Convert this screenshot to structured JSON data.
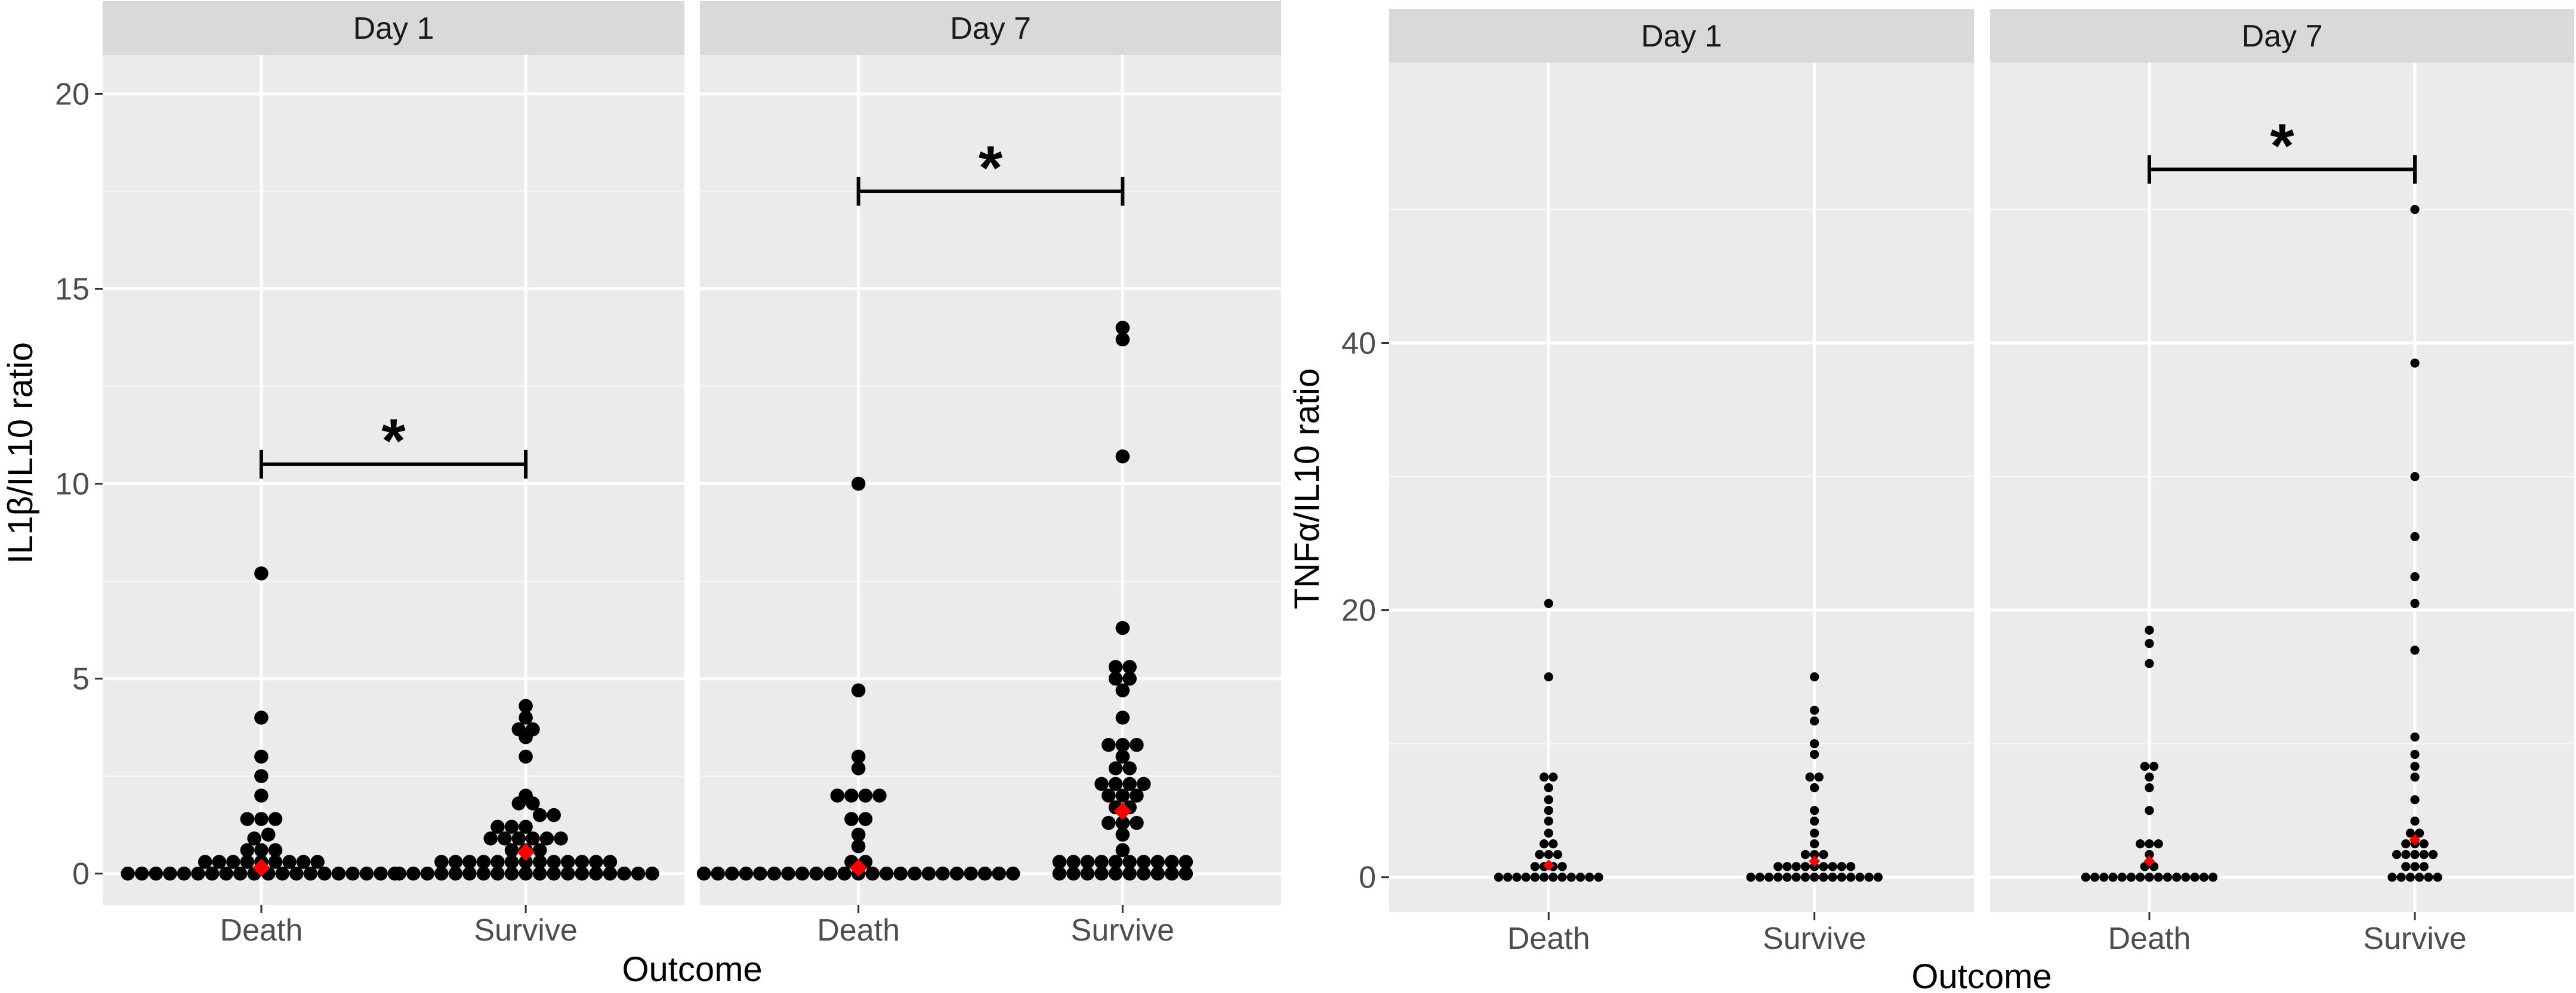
{
  "chart_data": [
    {
      "type": "scatter",
      "style": "dotplot",
      "ylabel": "IL1β/IL10 ratio",
      "xlabel": "Outcome",
      "ylim": [
        -0.8,
        21
      ],
      "yticks": [
        0,
        5,
        10,
        15,
        20
      ],
      "ytick_labels": [
        "0",
        "5",
        "10",
        "15",
        "20"
      ],
      "categories": [
        "Death",
        "Survive"
      ],
      "bin": 0.34,
      "dot_radius": 0.18,
      "panels": [
        {
          "facet": "Day 1",
          "groups": [
            {
              "category": "Death",
              "mean": 0.15,
              "values": [
                0,
                0,
                0,
                0,
                0,
                0,
                0,
                0,
                0,
                0,
                0,
                0,
                0,
                0,
                0,
                0,
                0,
                0,
                0,
                0,
                0.3,
                0.3,
                0.3,
                0.3,
                0.3,
                0.3,
                0.3,
                0.3,
                0.3,
                0.6,
                0.6,
                0.6,
                0.9,
                1.0,
                1.4,
                1.4,
                1.4,
                2.0,
                2.5,
                3.0,
                4.0,
                7.7
              ]
            },
            {
              "category": "Survive",
              "mean": 0.55,
              "values": [
                0,
                0,
                0,
                0,
                0,
                0,
                0,
                0,
                0,
                0,
                0,
                0,
                0,
                0,
                0,
                0,
                0,
                0,
                0,
                0.3,
                0.3,
                0.3,
                0.3,
                0.3,
                0.3,
                0.3,
                0.3,
                0.3,
                0.3,
                0.3,
                0.3,
                0.3,
                0.6,
                0.6,
                0.6,
                0.9,
                0.9,
                0.9,
                0.9,
                0.9,
                0.9,
                1.2,
                1.2,
                1.2,
                1.5,
                1.5,
                1.8,
                1.8,
                2.0,
                3.0,
                3.5,
                3.7,
                3.7,
                4.0,
                4.3
              ]
            }
          ],
          "significance": {
            "from": "Death",
            "to": "Survive",
            "y": 10.5,
            "label": "*"
          }
        },
        {
          "facet": "Day 7",
          "groups": [
            {
              "category": "Death",
              "mean": 0.15,
              "values": [
                0,
                0,
                0,
                0,
                0,
                0,
                0,
                0,
                0,
                0,
                0,
                0,
                0,
                0,
                0,
                0,
                0,
                0,
                0,
                0,
                0,
                0,
                0,
                0.3,
                0.3,
                0.7,
                1.0,
                1.4,
                1.4,
                2.0,
                2.0,
                2.0,
                2.0,
                2.7,
                3.0,
                4.7,
                10.0
              ]
            },
            {
              "category": "Survive",
              "mean": 1.6,
              "values": [
                0,
                0,
                0,
                0,
                0,
                0,
                0,
                0,
                0,
                0,
                0.3,
                0.3,
                0.3,
                0.3,
                0.3,
                0.3,
                0.3,
                0.3,
                0.3,
                0.3,
                0.6,
                1.0,
                1.3,
                1.3,
                1.3,
                1.7,
                1.7,
                2.0,
                2.0,
                2.0,
                2.3,
                2.3,
                2.3,
                2.3,
                2.7,
                2.7,
                3.0,
                3.3,
                3.3,
                3.3,
                4.0,
                4.7,
                5.0,
                5.0,
                5.3,
                5.3,
                6.3,
                10.7,
                13.7,
                14.0
              ]
            }
          ],
          "significance": {
            "from": "Death",
            "to": "Survive",
            "y": 17.5,
            "label": "*"
          }
        }
      ]
    },
    {
      "type": "scatter",
      "style": "dotplot",
      "ylabel": "TNFα/IL10 ratio",
      "xlabel": "Outcome",
      "ylim": [
        -2.6,
        61
      ],
      "yticks": [
        0,
        20,
        40
      ],
      "ytick_labels": [
        "0",
        "20",
        "40"
      ],
      "categories": [
        "Death",
        "Survive"
      ],
      "bin": 0.85,
      "dot_radius": 0.34,
      "panels": [
        {
          "facet": "Day 1",
          "groups": [
            {
              "category": "Death",
              "mean": 0.9,
              "values": [
                0,
                0,
                0,
                0,
                0,
                0,
                0,
                0,
                0,
                0,
                0,
                0,
                0.8,
                0.8,
                0.8,
                0.8,
                1.7,
                1.7,
                1.7,
                2.5,
                2.5,
                3.3,
                4.2,
                5.0,
                5.8,
                6.7,
                7.5,
                7.5,
                15.0,
                20.5
              ]
            },
            {
              "category": "Survive",
              "mean": 1.2,
              "values": [
                0,
                0,
                0,
                0,
                0,
                0,
                0,
                0,
                0,
                0,
                0,
                0,
                0,
                0,
                0,
                0.8,
                0.8,
                0.8,
                0.8,
                0.8,
                0.8,
                0.8,
                0.8,
                0.8,
                1.7,
                1.7,
                1.7,
                2.5,
                3.3,
                4.2,
                5.0,
                6.7,
                7.5,
                7.5,
                9.2,
                10.0,
                11.7,
                12.5,
                15.0
              ]
            }
          ]
        },
        {
          "facet": "Day 7",
          "groups": [
            {
              "category": "Death",
              "mean": 1.2,
              "values": [
                0,
                0,
                0,
                0,
                0,
                0,
                0,
                0,
                0,
                0,
                0,
                0,
                0,
                0,
                0,
                0.8,
                0.8,
                1.7,
                2.5,
                2.5,
                2.5,
                5.0,
                6.7,
                7.5,
                8.3,
                8.3,
                16.0,
                17.5,
                18.5
              ]
            },
            {
              "category": "Survive",
              "mean": 2.8,
              "values": [
                0,
                0,
                0,
                0,
                0,
                0,
                0.8,
                0.8,
                0.8,
                1.7,
                1.7,
                1.7,
                1.7,
                1.7,
                2.5,
                2.5,
                2.5,
                3.3,
                3.3,
                4.2,
                5.8,
                7.5,
                8.3,
                9.2,
                10.5,
                17.0,
                20.5,
                22.5,
                25.5,
                30.0,
                38.5,
                50.0
              ]
            }
          ],
          "significance": {
            "from": "Death",
            "to": "Survive",
            "y": 53.0,
            "label": "*"
          }
        }
      ]
    }
  ]
}
